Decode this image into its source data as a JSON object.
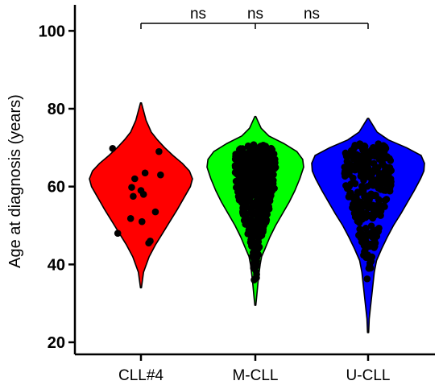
{
  "chart_data": {
    "type": "violin",
    "title": "",
    "xlabel": "",
    "ylabel": "Age at diagnosis (years)",
    "ylim": [
      20,
      105
    ],
    "yticks": [
      20,
      40,
      60,
      80,
      100
    ],
    "ytick_labels": [
      "20",
      "40",
      "60",
      "80",
      "100"
    ],
    "grid": false,
    "legend": "none",
    "categories": [
      "CLL#4",
      "M-CLL",
      "U-CLL"
    ],
    "series": [
      {
        "category": "CLL#4",
        "color": "#ff0000",
        "range": [
          34,
          81.5
        ],
        "density": [
          [
            34,
            0.01
          ],
          [
            38,
            0.05
          ],
          [
            42,
            0.16
          ],
          [
            45,
            0.28
          ],
          [
            48,
            0.42
          ],
          [
            51,
            0.56
          ],
          [
            54,
            0.7
          ],
          [
            57,
            0.83
          ],
          [
            60,
            0.96
          ],
          [
            62,
            1.0
          ],
          [
            64,
            0.94
          ],
          [
            66,
            0.8
          ],
          [
            68,
            0.62
          ],
          [
            70,
            0.46
          ],
          [
            72,
            0.32
          ],
          [
            74,
            0.2
          ],
          [
            77,
            0.1
          ],
          [
            81.5,
            0.01
          ]
        ],
        "points": [
          [
            -0.55,
            69.8
          ],
          [
            -0.12,
            62
          ],
          [
            0.08,
            63.5
          ],
          [
            0.35,
            69
          ],
          [
            0.38,
            63
          ],
          [
            -0.18,
            59.8
          ],
          [
            0.0,
            59
          ],
          [
            0.05,
            58
          ],
          [
            -0.15,
            57.5
          ],
          [
            -0.2,
            51.8
          ],
          [
            0.02,
            51
          ],
          [
            0.28,
            53.5
          ],
          [
            -0.45,
            48
          ],
          [
            0.18,
            46
          ],
          [
            0.15,
            45.5
          ]
        ]
      },
      {
        "category": "M-CLL",
        "color": "#00ff00",
        "range": [
          29.5,
          78
        ],
        "density": [
          [
            29.5,
            0.01
          ],
          [
            32,
            0.03
          ],
          [
            36,
            0.06
          ],
          [
            40,
            0.1
          ],
          [
            42,
            0.13
          ],
          [
            44,
            0.2
          ],
          [
            47,
            0.3
          ],
          [
            50,
            0.42
          ],
          [
            53,
            0.56
          ],
          [
            56,
            0.7
          ],
          [
            59,
            0.82
          ],
          [
            62,
            0.92
          ],
          [
            65,
            1.0
          ],
          [
            67,
            0.98
          ],
          [
            69,
            0.86
          ],
          [
            71,
            0.6
          ],
          [
            73,
            0.28
          ],
          [
            75,
            0.12
          ],
          [
            78,
            0.01
          ]
        ]
      },
      {
        "category": "U-CLL",
        "color": "#0000ff",
        "range": [
          22.5,
          77.5
        ],
        "density": [
          [
            22.5,
            0.01
          ],
          [
            26,
            0.02
          ],
          [
            30,
            0.05
          ],
          [
            34,
            0.08
          ],
          [
            38,
            0.11
          ],
          [
            41,
            0.15
          ],
          [
            44,
            0.24
          ],
          [
            47,
            0.34
          ],
          [
            50,
            0.45
          ],
          [
            53,
            0.58
          ],
          [
            56,
            0.7
          ],
          [
            59,
            0.82
          ],
          [
            62,
            0.93
          ],
          [
            64,
            0.99
          ],
          [
            66,
            1.0
          ],
          [
            68,
            0.94
          ],
          [
            70,
            0.68
          ],
          [
            72,
            0.36
          ],
          [
            74,
            0.16
          ],
          [
            77.5,
            0.01
          ]
        ]
      }
    ],
    "comparisons": [
      {
        "groups": [
          "CLL#4",
          "M-CLL"
        ],
        "label": "ns"
      },
      {
        "groups": [
          "CLL#4",
          "U-CLL"
        ],
        "label": "ns"
      },
      {
        "groups": [
          "M-CLL",
          "U-CLL"
        ],
        "label": "ns"
      }
    ]
  }
}
